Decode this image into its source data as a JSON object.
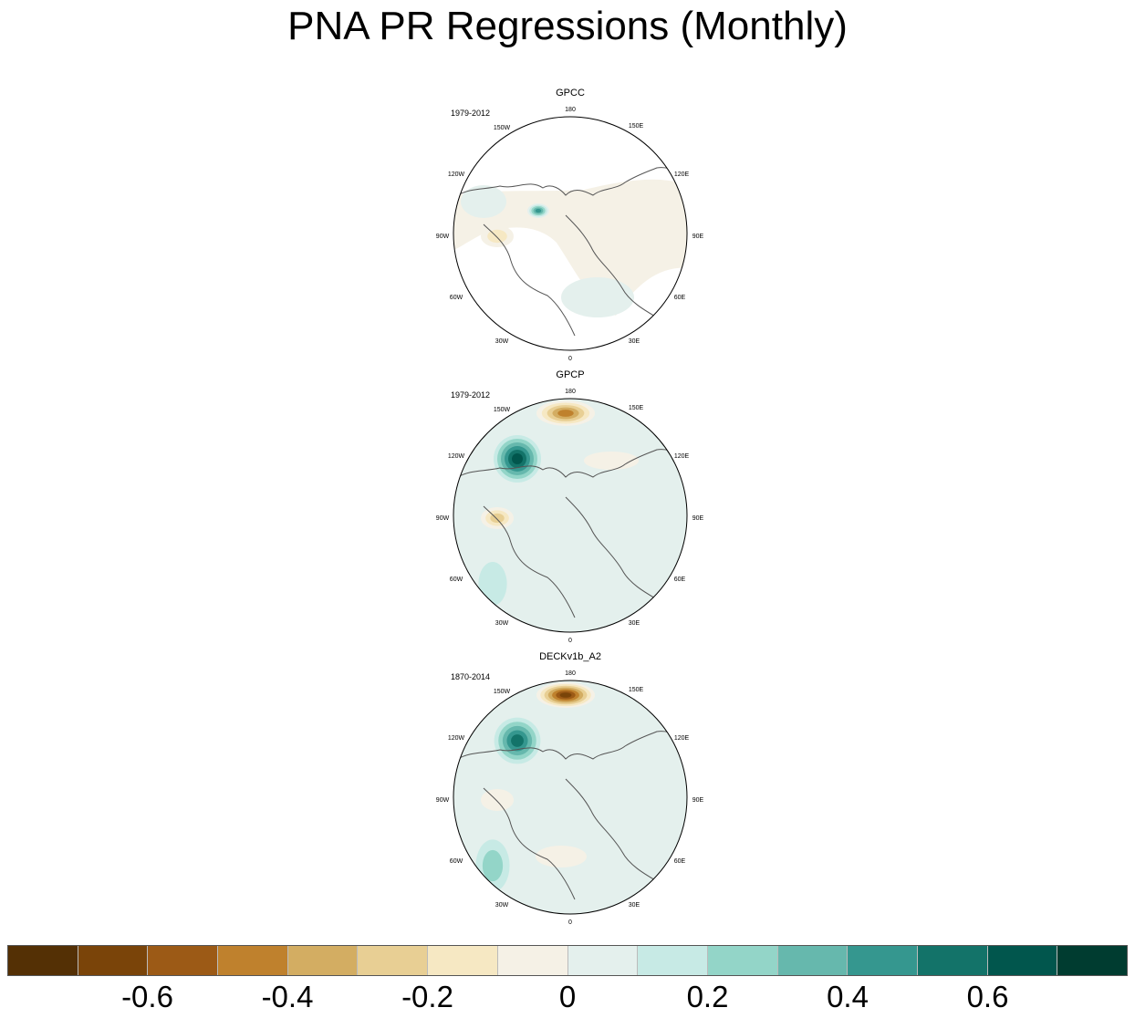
{
  "title": "PNA PR Regressions (Monthly)",
  "chart_data": {
    "type": "heatmap",
    "title": "PNA PR Regressions (Monthly)",
    "projection": "north polar stereographic",
    "longitude_labels": [
      "180",
      "150E",
      "120E",
      "90E",
      "60E",
      "30E",
      "0",
      "30W",
      "60W",
      "90W",
      "120W",
      "150W"
    ],
    "panels": [
      {
        "name": "GPCC",
        "period": "1979-2012",
        "coverage": "land only",
        "features": [
          {
            "region": "Alaska coast",
            "value": 0.5
          },
          {
            "region": "western Canada",
            "value": 0.15
          },
          {
            "region": "central Canada",
            "value": -0.2
          },
          {
            "region": "east Siberia",
            "value": -0.15
          },
          {
            "region": "Europe",
            "value": 0.1
          }
        ]
      },
      {
        "name": "GPCP",
        "period": "1979-2012",
        "coverage": "global",
        "features": [
          {
            "region": "central North Pacific",
            "value": -0.45
          },
          {
            "region": "Gulf of Alaska",
            "value": 0.65
          },
          {
            "region": "central Canada",
            "value": -0.25
          },
          {
            "region": "western North Atlantic",
            "value": 0.2
          },
          {
            "region": "Bering Sea",
            "value": -0.15
          }
        ]
      },
      {
        "name": "DECKv1b_A2",
        "period": "1870-2014",
        "coverage": "global",
        "features": [
          {
            "region": "central North Pacific",
            "value": -0.65
          },
          {
            "region": "Gulf of Alaska",
            "value": 0.6
          },
          {
            "region": "western North Atlantic",
            "value": 0.35
          },
          {
            "region": "central Canada",
            "value": -0.15
          },
          {
            "region": "subtropical Atlantic",
            "value": -0.15
          }
        ]
      }
    ],
    "colorbar": {
      "levels": [
        -0.7,
        -0.6,
        -0.5,
        -0.4,
        -0.3,
        -0.2,
        -0.1,
        0,
        0.1,
        0.2,
        0.3,
        0.4,
        0.5,
        0.6,
        0.7
      ],
      "colors": [
        "#543005",
        "#7a4409",
        "#9c5a16",
        "#bf812d",
        "#d3ad62",
        "#e8cf94",
        "#f6e8c3",
        "#f5f1e6",
        "#e4f0ed",
        "#c7eae5",
        "#93d5c8",
        "#66b8ad",
        "#35978f",
        "#137369",
        "#01564d",
        "#003c30"
      ],
      "tick_labels": [
        "-0.6",
        "-0.4",
        "-0.2",
        "0",
        "0.2",
        "0.4",
        "0.6"
      ],
      "tick_values": [
        -0.6,
        -0.4,
        -0.2,
        0,
        0.2,
        0.4,
        0.6
      ]
    }
  }
}
